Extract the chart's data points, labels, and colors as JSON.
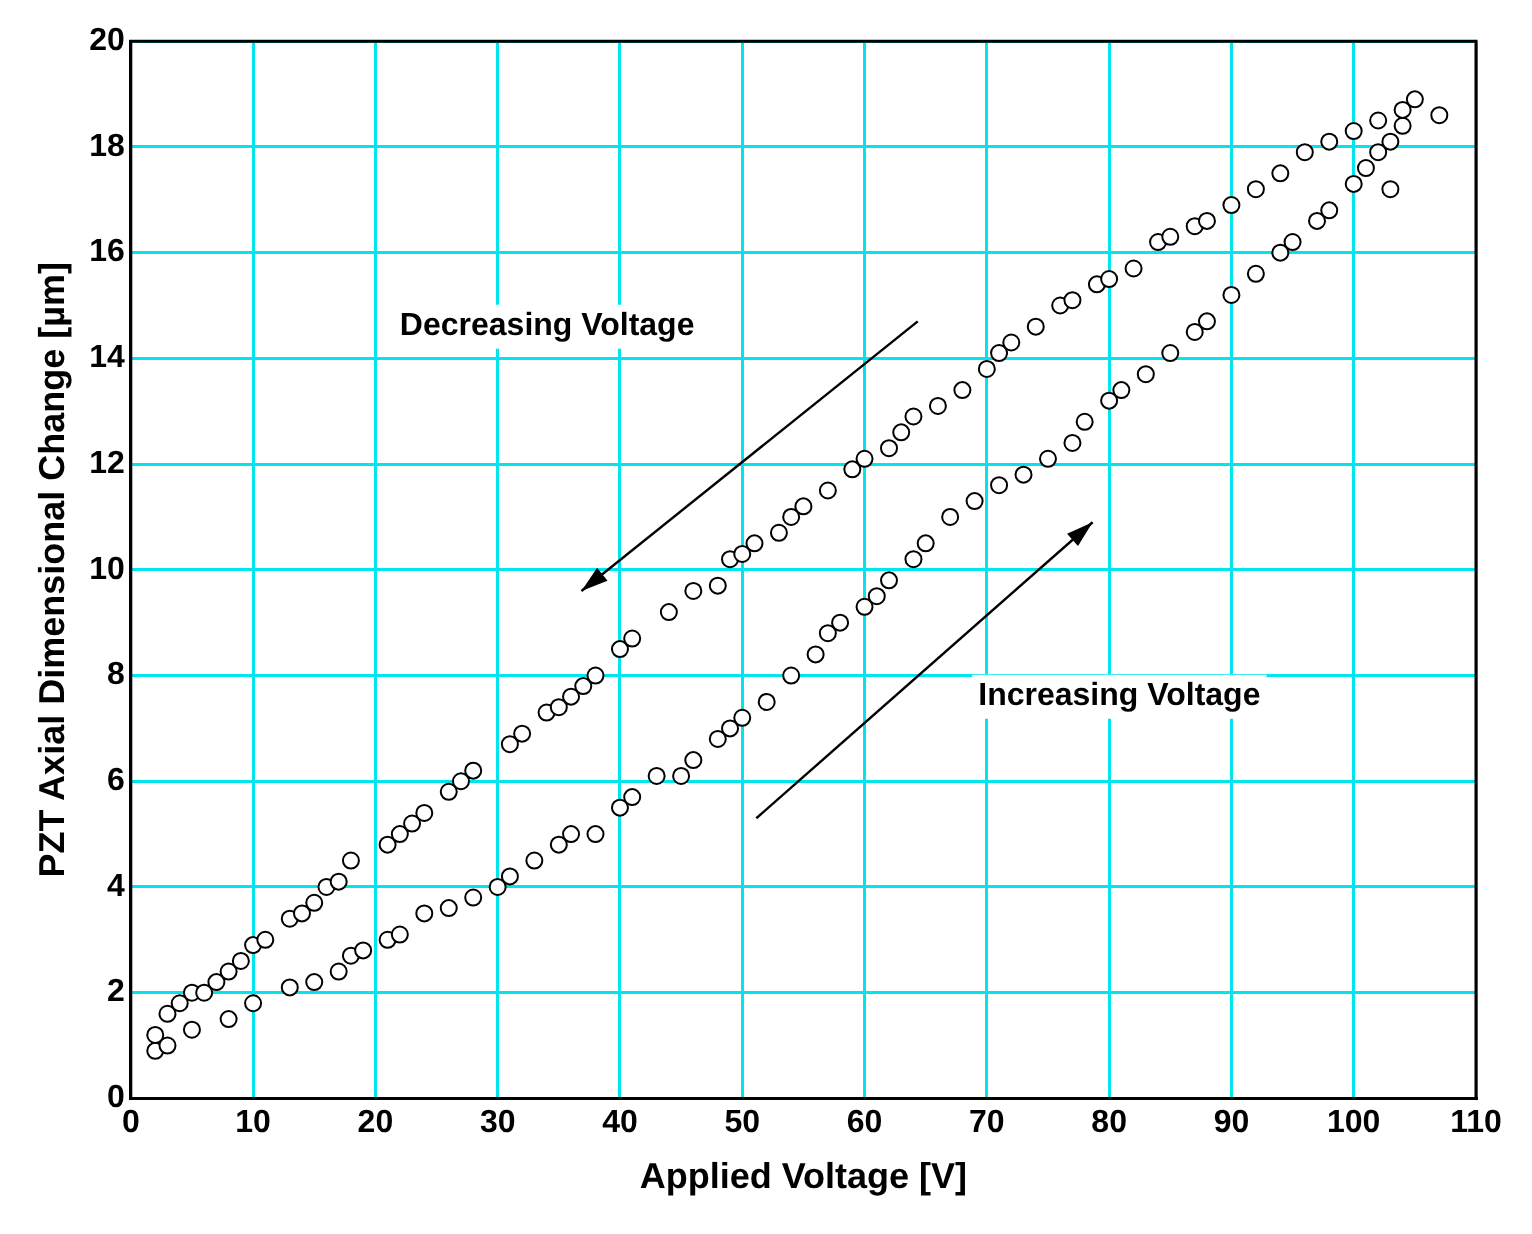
{
  "chart_data": {
    "type": "scatter",
    "xlabel": "Applied Voltage [V]",
    "ylabel": "PZT Axial Dimensional Change [µm]",
    "xlim": [
      0,
      110
    ],
    "xticks": [
      0,
      10,
      20,
      30,
      40,
      50,
      60,
      70,
      80,
      90,
      100,
      110
    ],
    "ylim": [
      0,
      20
    ],
    "yticks": [
      0,
      2,
      4,
      6,
      8,
      10,
      12,
      14,
      16,
      18,
      20
    ],
    "grid": true,
    "legend": false,
    "marker": "circle",
    "annotations": [
      "Decreasing Voltage",
      "Increasing Voltage"
    ],
    "series": [
      {
        "color": "#000000",
        "x": [
          2,
          3,
          4,
          5,
          6,
          7,
          8,
          9,
          10,
          11,
          13,
          14,
          15,
          16,
          17,
          18,
          21,
          22,
          23,
          24,
          26,
          27,
          28,
          31,
          32,
          34,
          35,
          36,
          37,
          38,
          40,
          41,
          44,
          46,
          48,
          49,
          50,
          51,
          53,
          54,
          55,
          57,
          59,
          60,
          62,
          63,
          64,
          66,
          68,
          70,
          71,
          72,
          74,
          76,
          77,
          79,
          80,
          82,
          84,
          85,
          87,
          88,
          90,
          92,
          94,
          96,
          98,
          100,
          102,
          104,
          105,
          107
        ],
        "values": [
          1.2,
          1.6,
          1.8,
          2,
          2,
          2.2,
          2.4,
          2.6,
          2.9,
          3,
          3.4,
          3.5,
          3.7,
          4,
          4.1,
          4.5,
          4.8,
          5,
          5.2,
          5.4,
          5.8,
          6,
          6.2,
          6.7,
          6.9,
          7.3,
          7.4,
          7.6,
          7.8,
          8,
          8.5,
          8.7,
          9.2,
          9.6,
          9.7,
          10.2,
          10.3,
          10.5,
          10.7,
          11,
          11.2,
          11.5,
          11.9,
          12.1,
          12.3,
          12.6,
          12.9,
          13.1,
          13.4,
          13.8,
          14.1,
          14.3,
          14.6,
          15,
          15.1,
          15.4,
          15.5,
          15.7,
          16.2,
          16.3,
          16.5,
          16.6,
          16.9,
          17.2,
          17.5,
          17.9,
          18.1,
          18.3,
          18.5,
          18.7,
          18.9,
          18.6
        ]
      },
      {
        "color": "#000000",
        "x": [
          2,
          3,
          5,
          8,
          10,
          13,
          15,
          17,
          18,
          19,
          21,
          22,
          24,
          26,
          28,
          30,
          31,
          33,
          35,
          36,
          38,
          40,
          41,
          43,
          45,
          46,
          48,
          49,
          50,
          52,
          54,
          56,
          57,
          58,
          60,
          61,
          62,
          64,
          65,
          67,
          69,
          71,
          73,
          75,
          77,
          78,
          80,
          81,
          83,
          85,
          87,
          88,
          90,
          92,
          94,
          95,
          97,
          98,
          100,
          101,
          102,
          103,
          104,
          103
        ],
        "values": [
          0.9,
          1,
          1.3,
          1.5,
          1.8,
          2.1,
          2.2,
          2.4,
          2.7,
          2.8,
          3,
          3.1,
          3.5,
          3.6,
          3.8,
          4,
          4.2,
          4.5,
          4.8,
          5,
          5,
          5.5,
          5.7,
          6.1,
          6.1,
          6.4,
          6.8,
          7,
          7.2,
          7.5,
          8,
          8.4,
          8.8,
          9,
          9.3,
          9.5,
          9.8,
          10.2,
          10.5,
          11,
          11.3,
          11.6,
          11.8,
          12.1,
          12.4,
          12.8,
          13.2,
          13.4,
          13.7,
          14.1,
          14.5,
          14.7,
          15.2,
          15.6,
          16,
          16.2,
          16.6,
          16.8,
          17.3,
          17.6,
          17.9,
          18.1,
          18.4,
          17.2
        ]
      }
    ]
  }
}
